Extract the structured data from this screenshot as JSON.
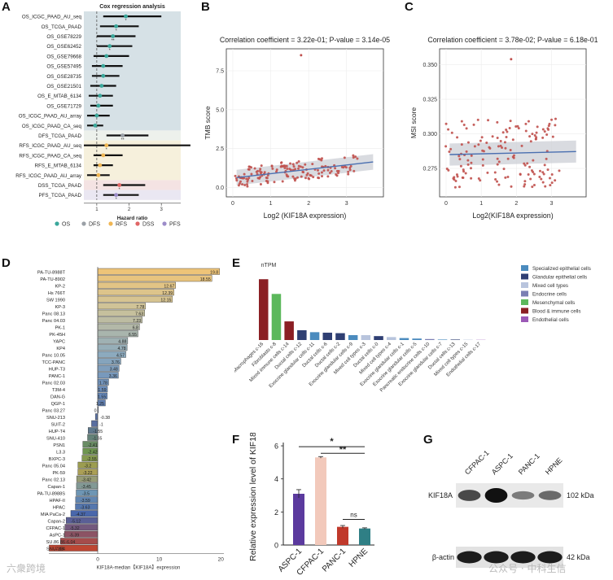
{
  "panels": {
    "a": "A",
    "b": "B",
    "c": "C",
    "d": "D",
    "e": "E",
    "f": "F",
    "g": "G"
  },
  "panel_a": {
    "title": "Cox regression analysis",
    "xlabel": "Hazard ratio",
    "xticks": [
      "1",
      "2",
      "3"
    ],
    "rows": [
      "OS_ICGC_PAAD_AU_seq",
      "OS_TCGA_PAAD",
      "OS_GSE78229",
      "OS_GSE62452",
      "OS_GSE79668",
      "OS_GSE57495",
      "OS_GSE28735",
      "OS_GSE21501",
      "OS_E_MTAB_6134",
      "OS_GSE71729",
      "OS_ICGC_PAAD_AU_array",
      "OS_ICGC_PAAD_CA_seq",
      "DFS_TCGA_PAAD",
      "RFS_ICGC_PAAD_AU_seq",
      "RFS_ICGC_PAAD_CA_seq",
      "RFS_E_MTAB_6134",
      "RFS_ICGC_PAAD_AU_array",
      "DSS_TCGA_PAAD",
      "PFS_TCGA_PAAD"
    ],
    "hr": [
      1.9,
      1.6,
      1.5,
      1.4,
      1.3,
      1.2,
      1.2,
      1.15,
      1.1,
      1.05,
      1.0,
      0.95,
      1.8,
      1.3,
      1.2,
      1.1,
      1.05,
      1.7,
      1.6
    ],
    "lo": [
      1.2,
      1.1,
      1.0,
      1.0,
      0.9,
      0.85,
      0.85,
      0.8,
      0.75,
      0.8,
      0.7,
      0.7,
      1.3,
      0.6,
      0.9,
      0.9,
      0.7,
      1.2,
      1.2
    ],
    "hi": [
      3.0,
      2.3,
      2.2,
      2.1,
      2.0,
      1.8,
      1.7,
      1.6,
      1.5,
      1.5,
      1.4,
      1.2,
      2.6,
      3.9,
      1.8,
      1.5,
      1.4,
      2.5,
      2.3
    ],
    "types": [
      "OS",
      "OS",
      "OS",
      "OS",
      "OS",
      "OS",
      "OS",
      "OS",
      "OS",
      "OS",
      "OS",
      "OS",
      "DFS",
      "RFS",
      "RFS",
      "RFS",
      "RFS",
      "DSS",
      "PFS"
    ],
    "stars": [
      "*",
      "*",
      "**",
      "*",
      "",
      "",
      "",
      "",
      "",
      "",
      "",
      "",
      "**",
      "*",
      "",
      "",
      "",
      "*",
      "*"
    ],
    "legend": [
      "OS",
      "DFS",
      "RFS",
      "DSS",
      "PFS"
    ],
    "colors": {
      "OS": "#3aa79b",
      "DFS": "#9aa0a6",
      "RFS": "#f0b653",
      "DSS": "#e06666",
      "PFS": "#9c8cc9"
    }
  },
  "panel_b": {
    "title": "Correlation coefficient = 3.22e-01; P-value = 3.14e-05",
    "xlabel": "Log2 (KIF18A expression)",
    "ylabel": "TMB score",
    "xticks": [
      "0",
      "1",
      "2",
      "3"
    ],
    "yticks": [
      "0.0",
      "2.5",
      "5.0",
      "7.5"
    ]
  },
  "panel_c": {
    "title": "Correlation coefficient = 3.78e-02; P-value = 6.18e-01",
    "xlabel": "Log2(KIF18A expression)",
    "ylabel": "MSI score",
    "xticks": [
      "0",
      "1",
      "2",
      "3"
    ],
    "yticks": [
      "0.275",
      "0.300",
      "0.325",
      "0.350"
    ]
  },
  "panel_d": {
    "xlabel": "KIF18A-median【KIF18A】expression",
    "xticks": [
      "0",
      "10",
      "20"
    ],
    "cells": [
      "PA-TU-8988T",
      "PA-TU-8902",
      "KP-2",
      "Hs 766T",
      "SW 1990",
      "KP-3",
      "Panc 08.13",
      "Panc 04.03",
      "PK-1",
      "PK-45H",
      "YAPC",
      "KP4",
      "Panc 10.05",
      "TCC-PANC",
      "HUP-T3",
      "PANC-1",
      "Panc 02.03",
      "T3M-4",
      "DAN-G",
      "QGP-1",
      "Panc 03.27",
      "SNU-213",
      "SUIT-2",
      "HUP-T4",
      "SNU-410",
      "PSN1",
      "L3.3",
      "BXPC-3",
      "Panc 05.04",
      "PK-59",
      "Panc 02.13",
      "Capan-1",
      "PA-TU-8988S",
      "HPAF-II",
      "HPAC",
      "MIA PaCa-2",
      "Capan-2",
      "CFPAC-1",
      "AsPC-1",
      "SU.86.86",
      "SNU-324"
    ],
    "values": [
      19.8,
      18.55,
      12.67,
      12.39,
      12.15,
      7.78,
      7.63,
      7.23,
      6.8,
      6.55,
      4.88,
      4.78,
      4.57,
      3.76,
      3.48,
      3.36,
      1.78,
      1.59,
      1.55,
      1.25,
      0.0,
      -0.38,
      -1.0,
      -1.55,
      -1.65,
      -2.41,
      -2.42,
      -2.55,
      -3.2,
      -3.22,
      -3.42,
      -3.45,
      -3.5,
      -3.59,
      -3.63,
      -4.37,
      -5.12,
      -5.32,
      -5.39,
      -6.04,
      -7.88
    ],
    "labels": [
      "19.8",
      "18.55",
      "12.67",
      "12.39",
      "12.15",
      "7.78",
      "7.63",
      "7.23",
      "6.8",
      "6.55",
      "4.88",
      "4.78",
      "4.57",
      "3.76",
      "3.48",
      "3.36",
      "1.78",
      "1.59",
      "1.55",
      "1.25",
      "0",
      "-0.38",
      "-1",
      "-1.55",
      "-1.65",
      "-2.41",
      "-2.42",
      "-2.55",
      "-3.2",
      "-3.22",
      "-3.42",
      "-3.45",
      "-3.5",
      "-3.59",
      "-3.63",
      "-4.37",
      "-5.12",
      "-5.32",
      "-5.39",
      "-6.04",
      "-7.88"
    ]
  },
  "panel_e": {
    "ylabel": "nTPM",
    "categories": [
      "Macrophages c-16",
      "Fibroblasts c-8",
      "Mixed immune cells c-14",
      "Ductal cells c-12",
      "Exocrine glandular cells c-11",
      "Ductal cells c-6",
      "Ductal cells c-2",
      "Exocrine glandular cells c-9",
      "Mixed cell types c-3",
      "Ductal cells c-0",
      "Mixed cell types c-4",
      "Exocrine glandular cells c-1",
      "Exocrine glandular cells c-5",
      "Pancreatic endocrine cells c-10",
      "Exocrine glandular cells c-7",
      "Ductal cells c-13",
      "Mixed cell types c-15",
      "Endothelial cells c-17"
    ],
    "values": [
      6.2,
      4.7,
      1.9,
      1.0,
      0.8,
      0.75,
      0.7,
      0.5,
      0.5,
      0.4,
      0.3,
      0.2,
      0.15,
      0.1,
      0.05,
      0.05,
      0.03,
      0.02
    ],
    "legend": [
      "Specialized epithelial cells",
      "Glandular epithelial cells",
      "Mixed cell types",
      "Endocrine cells",
      "Mesenchymal cells",
      "Blood & immune cells",
      "Endothelial cells"
    ],
    "legend_colors": [
      "#4b8bbe",
      "#2f3f73",
      "#b8c4dd",
      "#7b7fb3",
      "#5cb85c",
      "#8b1f24",
      "#9b59b6"
    ]
  },
  "panel_f": {
    "ylabel": "Relative expression level of KIF18A",
    "categories": [
      "ASPC-1",
      "CFPAC-1",
      "PANC-1",
      "HPNE"
    ],
    "values": [
      3.1,
      5.3,
      1.1,
      1.0
    ],
    "errors": [
      0.25,
      0.05,
      0.08,
      0.04
    ],
    "colors": [
      "#5b3a9e",
      "#f2c9bb",
      "#c0392b",
      "#2f7f85"
    ],
    "yticks": [
      "0",
      "2",
      "4",
      "6"
    ],
    "sig": [
      "*",
      "**",
      "ns"
    ]
  },
  "panel_g": {
    "lanes": [
      "CFPAC-1",
      "ASPC-1",
      "PANC-1",
      "HPNE"
    ],
    "rows": [
      "KIF18A",
      "β-actin"
    ],
    "sizes": [
      "102 kDa",
      "42 kDa"
    ],
    "kif_intensity": [
      0.65,
      1.0,
      0.35,
      0.45
    ]
  },
  "watermarks": [
    "六衆跨境",
    "公众号 · 中科生信"
  ]
}
